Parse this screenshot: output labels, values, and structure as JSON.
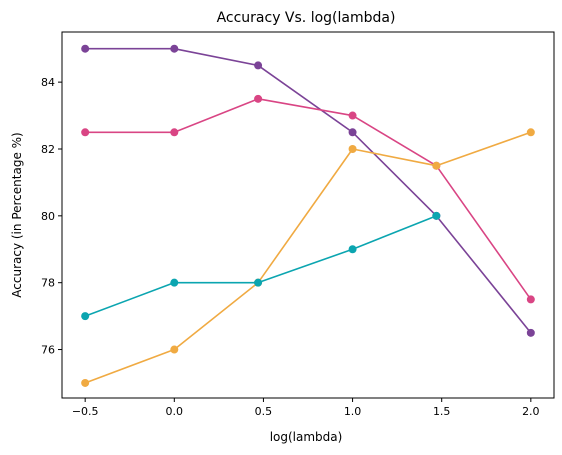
{
  "chart_data": {
    "type": "line",
    "title": "Accuracy Vs. log(lambda)",
    "xlabel": "log(lambda)",
    "ylabel": "Accuracy (in Percentage %)",
    "x": [
      -0.5,
      0.0,
      0.47,
      1.0,
      1.47,
      2.0
    ],
    "xlim": [
      -0.63,
      2.13
    ],
    "ylim": [
      74.55,
      85.5
    ],
    "xticks": [
      -0.5,
      0.0,
      0.5,
      1.0,
      1.5,
      2.0
    ],
    "xtick_labels": [
      "−0.5",
      "0.0",
      "0.5",
      "1.0",
      "1.5",
      "2.0"
    ],
    "yticks": [
      76,
      78,
      80,
      82,
      84
    ],
    "ytick_labels": [
      "76",
      "78",
      "80",
      "82",
      "84"
    ],
    "grid": false,
    "series": [
      {
        "color": "#7B4397",
        "values": [
          85.0,
          85.0,
          84.5,
          82.5,
          80.0,
          76.5
        ]
      },
      {
        "color": "#D94584",
        "values": [
          82.5,
          82.5,
          83.5,
          83.0,
          81.5,
          77.5
        ]
      },
      {
        "color": "#F0AA42",
        "values": [
          75.0,
          76.0,
          78.0,
          82.0,
          81.5,
          82.5
        ]
      },
      {
        "color": "#0BA5B0",
        "values": [
          77.0,
          78.0,
          78.0,
          79.0,
          80.0,
          null
        ]
      }
    ]
  }
}
